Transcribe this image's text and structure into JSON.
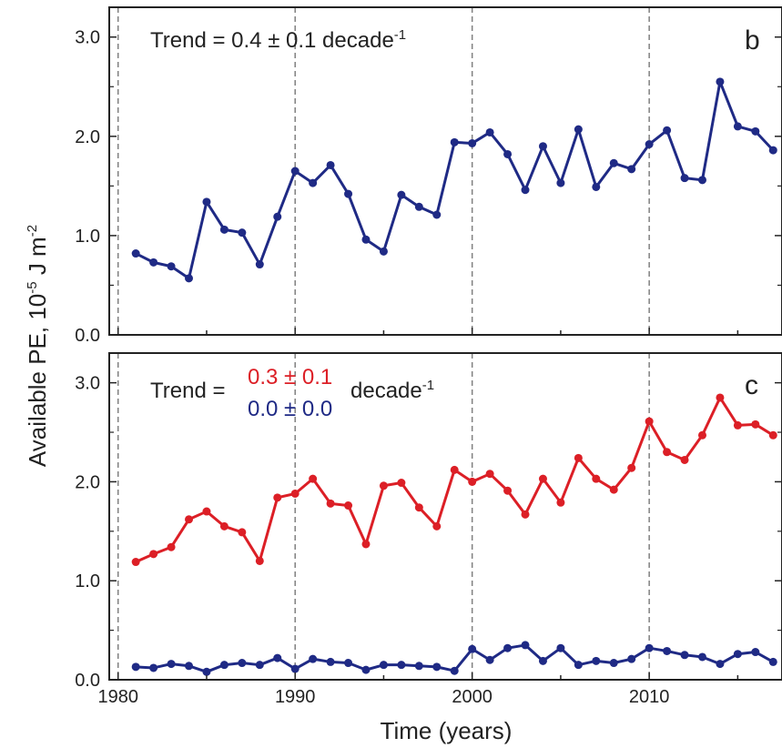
{
  "chart_data": [
    {
      "type": "line",
      "panel_label": "b",
      "annotation": {
        "prefix": "Trend = ",
        "value": "0.4 ± 0.1",
        "suffix": " decade",
        "suffix_sup": "-1"
      },
      "ylim": [
        0,
        3.3
      ],
      "yticks": [
        "0.0",
        "1.0",
        "2.0",
        "3.0"
      ],
      "yticks_values": [
        0,
        1,
        2,
        3
      ],
      "xlim": [
        1979.5,
        2017.5
      ],
      "vlines": [
        1980,
        1990,
        2000,
        2010
      ],
      "grid": false,
      "series": [
        {
          "color": "#1f2a85",
          "x": [
            1981,
            1982,
            1983,
            1984,
            1985,
            1986,
            1987,
            1988,
            1989,
            1990,
            1991,
            1992,
            1993,
            1994,
            1995,
            1996,
            1997,
            1998,
            1999,
            2000,
            2001,
            2002,
            2003,
            2004,
            2005,
            2006,
            2007,
            2008,
            2009,
            2010,
            2011,
            2012,
            2013,
            2014,
            2015,
            2016,
            2017
          ],
          "values": [
            0.82,
            0.73,
            0.69,
            0.57,
            1.34,
            1.06,
            1.03,
            0.71,
            1.19,
            1.65,
            1.53,
            1.71,
            1.42,
            0.96,
            0.84,
            1.41,
            1.29,
            1.21,
            1.94,
            1.93,
            2.04,
            1.82,
            1.46,
            1.9,
            1.53,
            2.07,
            1.49,
            1.73,
            1.67,
            1.92,
            2.06,
            1.58,
            1.56,
            2.55,
            2.1,
            2.05,
            1.86
          ]
        }
      ]
    },
    {
      "type": "line",
      "panel_label": "c",
      "annotation": {
        "prefix": "Trend = ",
        "value_red": "0.3 ± 0.1",
        "value_blue": "0.0 ± 0.0",
        "suffix": " decade",
        "suffix_sup": "-1"
      },
      "ylim": [
        0,
        3.3
      ],
      "yticks": [
        "0.0",
        "1.0",
        "2.0",
        "3.0"
      ],
      "yticks_values": [
        0,
        1,
        2,
        3
      ],
      "xlim": [
        1979.5,
        2017.5
      ],
      "xticks": [
        "1980",
        "1990",
        "2000",
        "2010"
      ],
      "xticks_values": [
        1980,
        1990,
        2000,
        2010
      ],
      "vlines": [
        1980,
        1990,
        2000,
        2010
      ],
      "grid": false,
      "series": [
        {
          "color": "#dc1f26",
          "x": [
            1981,
            1982,
            1983,
            1984,
            1985,
            1986,
            1987,
            1988,
            1989,
            1990,
            1991,
            1992,
            1993,
            1994,
            1995,
            1996,
            1997,
            1998,
            1999,
            2000,
            2001,
            2002,
            2003,
            2004,
            2005,
            2006,
            2007,
            2008,
            2009,
            2010,
            2011,
            2012,
            2013,
            2014,
            2015,
            2016,
            2017
          ],
          "values": [
            1.19,
            1.27,
            1.34,
            1.62,
            1.7,
            1.55,
            1.49,
            1.2,
            1.84,
            1.88,
            2.03,
            1.78,
            1.76,
            1.37,
            1.96,
            1.99,
            1.74,
            1.55,
            2.12,
            2.0,
            2.08,
            1.91,
            1.67,
            2.03,
            1.79,
            2.24,
            2.03,
            1.92,
            2.14,
            2.61,
            2.3,
            2.22,
            2.47,
            2.85,
            2.57,
            2.58,
            2.47
          ]
        },
        {
          "color": "#1f2a85",
          "x": [
            1981,
            1982,
            1983,
            1984,
            1985,
            1986,
            1987,
            1988,
            1989,
            1990,
            1991,
            1992,
            1993,
            1994,
            1995,
            1996,
            1997,
            1998,
            1999,
            2000,
            2001,
            2002,
            2003,
            2004,
            2005,
            2006,
            2007,
            2008,
            2009,
            2010,
            2011,
            2012,
            2013,
            2014,
            2015,
            2016,
            2017
          ],
          "values": [
            0.13,
            0.12,
            0.16,
            0.14,
            0.08,
            0.15,
            0.17,
            0.15,
            0.22,
            0.11,
            0.21,
            0.18,
            0.17,
            0.1,
            0.15,
            0.15,
            0.14,
            0.13,
            0.09,
            0.31,
            0.2,
            0.32,
            0.35,
            0.19,
            0.32,
            0.15,
            0.19,
            0.17,
            0.21,
            0.32,
            0.29,
            0.25,
            0.23,
            0.16,
            0.26,
            0.28,
            0.18
          ]
        }
      ]
    }
  ],
  "ylabel": {
    "main": "Available PE, 10",
    "sup1": "-5",
    "mid": " J m",
    "sup2": "-2"
  },
  "xlabel": "Time (years)",
  "colors": {
    "red": "#dc1f26",
    "blue": "#1f2a85",
    "axis": "#222222",
    "vline": "#808080"
  }
}
